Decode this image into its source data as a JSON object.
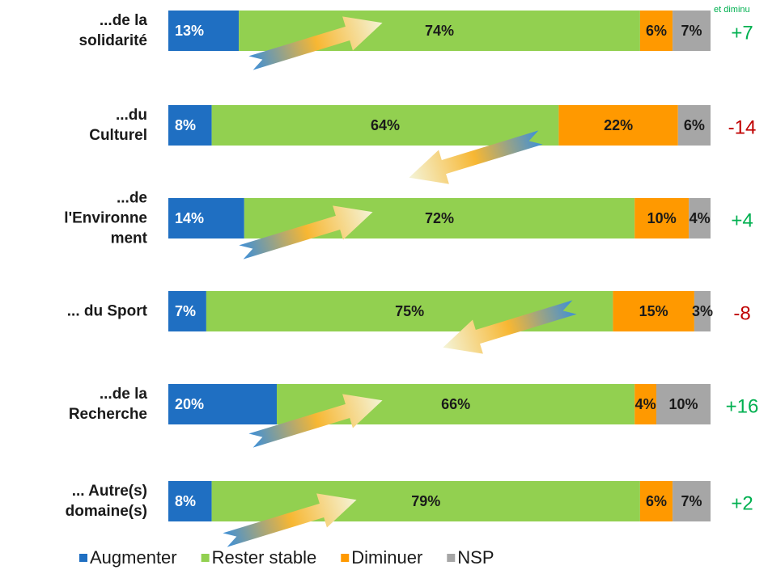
{
  "chart_data": {
    "type": "stacked-bar-horizontal",
    "categories": [
      "...de la\nsolidarité",
      "...du\nCulturel",
      "...de\nl'Environne\nment",
      "... du Sport",
      "...de la\nRecherche",
      "... Autre(s)\ndomaine(s)"
    ],
    "xlim": [
      0,
      100
    ],
    "series": [
      {
        "name": "Augmenter",
        "color": "#1f6fc2",
        "label_color": "#ffffff",
        "values": [
          13,
          8,
          14,
          7,
          20,
          8
        ],
        "value_labels": [
          "13%",
          "8%",
          "14%",
          "7%",
          "20%",
          "8%"
        ]
      },
      {
        "name": "Rester stable",
        "color": "#92d050",
        "label_color": "#1a1a1a",
        "values": [
          74,
          64,
          72,
          75,
          66,
          79
        ],
        "value_labels": [
          "74%",
          "64%",
          "72%",
          "75%",
          "66%",
          "79%"
        ]
      },
      {
        "name": "Diminuer",
        "color": "#ff9900",
        "label_color": "#1a1a1a",
        "values": [
          6,
          22,
          10,
          15,
          4,
          6
        ],
        "value_labels": [
          "6%",
          "22%",
          "10%",
          "15%",
          "4%",
          "6%"
        ]
      },
      {
        "name": "NSP",
        "color": "#a6a6a6",
        "label_color": "#1a1a1a",
        "values": [
          7,
          6,
          4,
          3,
          10,
          7
        ],
        "value_labels": [
          "7%",
          "6%",
          "4%",
          "3%",
          "10%",
          "7%"
        ]
      }
    ],
    "annotations": [
      "+7",
      "-14",
      "+4",
      "-8",
      "+16",
      "+2"
    ],
    "annotation_colors": [
      "#00b050",
      "#c00000",
      "#00b050",
      "#c00000",
      "#00b050",
      "#00b050"
    ],
    "note": "et diminu",
    "legend": "bottom"
  }
}
